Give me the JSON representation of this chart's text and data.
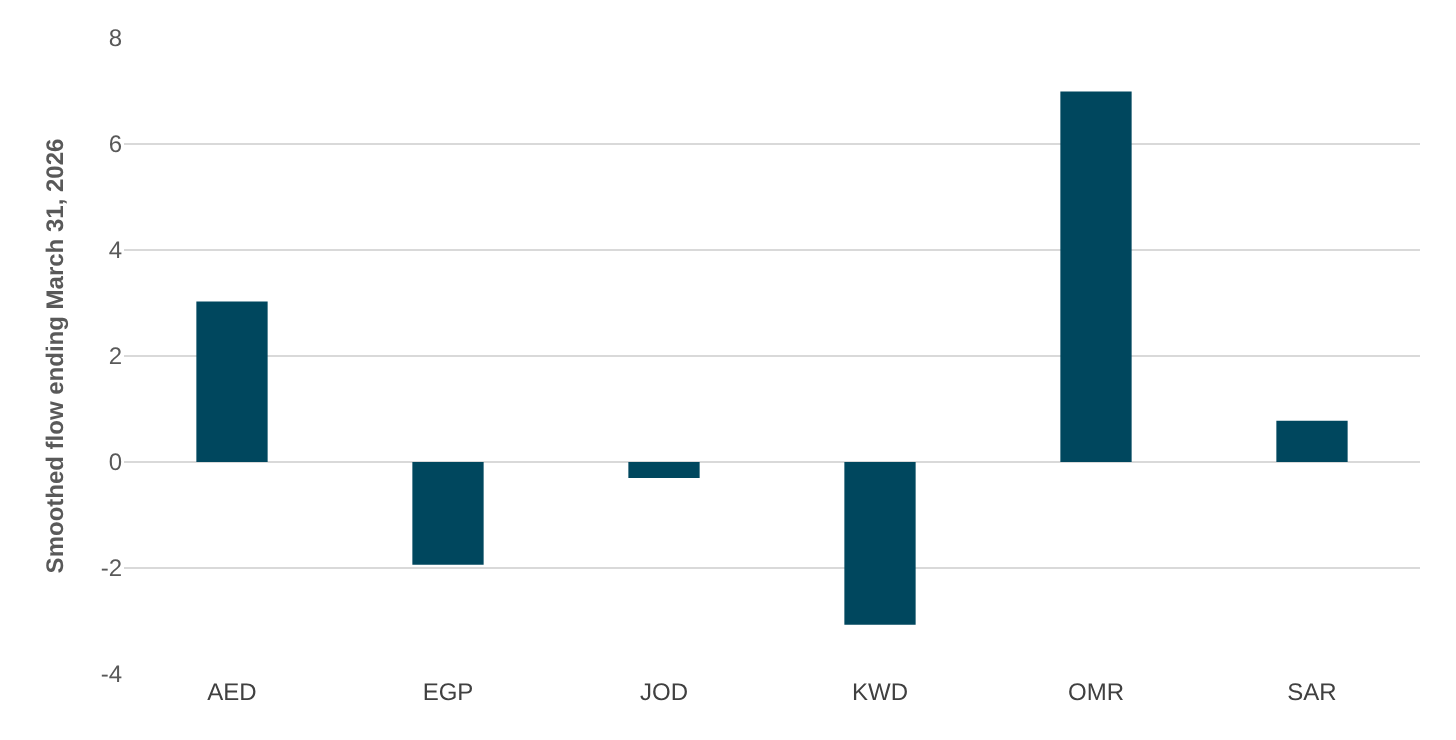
{
  "chart_data": {
    "type": "bar",
    "ylabel": "Smoothed flow ending March 31, 2026",
    "categories": [
      "AED",
      "EGP",
      "JOD",
      "KWD",
      "OMR",
      "SAR"
    ],
    "values": [
      3.03,
      -1.94,
      -0.3,
      -3.07,
      6.99,
      0.78
    ],
    "color": "#00475e",
    "ylim": [
      -4,
      8
    ],
    "yticks": [
      -4,
      -2,
      0,
      2,
      4,
      6,
      8
    ],
    "grid": "y"
  }
}
